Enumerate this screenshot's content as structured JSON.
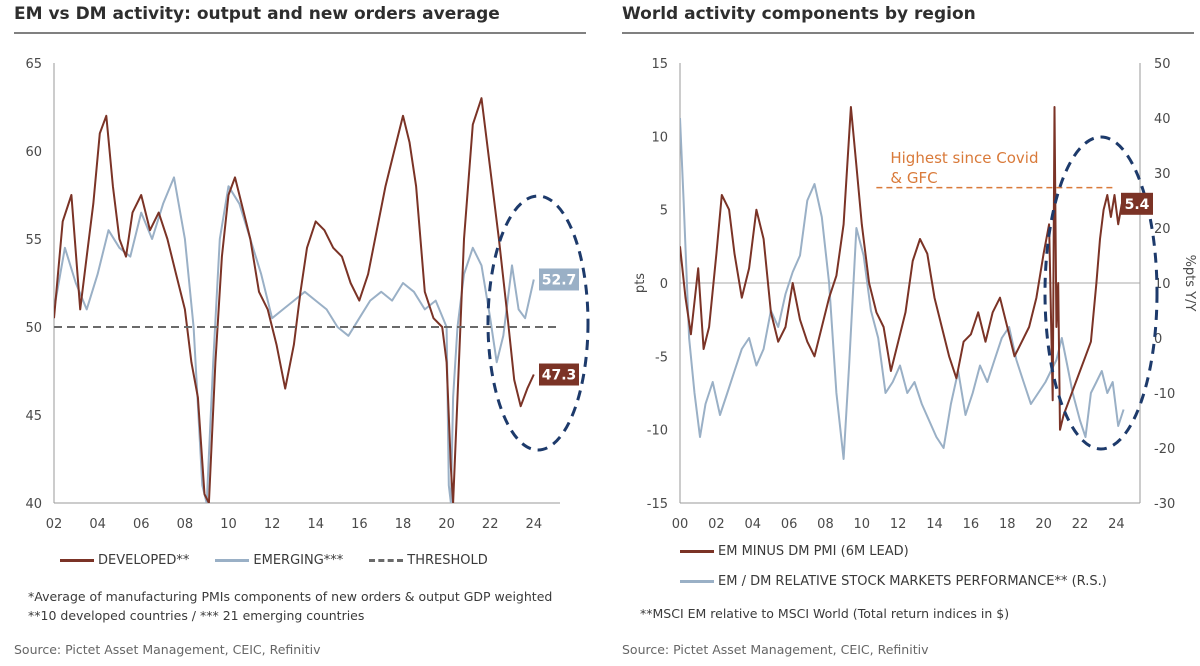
{
  "chart_data": [
    {
      "type": "line",
      "title": "EM vs DM activity: output and new orders average",
      "x_ticks": [
        "02",
        "04",
        "06",
        "08",
        "10",
        "12",
        "14",
        "16",
        "18",
        "20",
        "22",
        "24"
      ],
      "xlim": [
        2002,
        2025.2
      ],
      "ylim": [
        40,
        65
      ],
      "y_ticks": [
        40,
        45,
        50,
        55,
        60,
        65
      ],
      "series": [
        {
          "name": "DEVELOPED**",
          "color": "#7b3326",
          "x": [
            2002.0,
            2002.4,
            2002.8,
            2003.2,
            2003.5,
            2003.8,
            2004.1,
            2004.4,
            2004.7,
            2005.0,
            2005.3,
            2005.6,
            2006.0,
            2006.4,
            2006.8,
            2007.2,
            2007.6,
            2008.0,
            2008.3,
            2008.6,
            2008.9,
            2009.1,
            2009.4,
            2009.7,
            2010.0,
            2010.3,
            2010.6,
            2011.0,
            2011.4,
            2011.8,
            2012.2,
            2012.6,
            2013.0,
            2013.3,
            2013.6,
            2014.0,
            2014.4,
            2014.8,
            2015.2,
            2015.6,
            2016.0,
            2016.4,
            2016.8,
            2017.2,
            2017.6,
            2018.0,
            2018.3,
            2018.6,
            2019.0,
            2019.4,
            2019.8,
            2020.0,
            2020.2,
            2020.3,
            2020.5,
            2020.8,
            2021.2,
            2021.6,
            2022.0,
            2022.4,
            2022.8,
            2023.1,
            2023.4,
            2023.7,
            2024.0
          ],
          "values": [
            50.5,
            56.0,
            57.5,
            51.0,
            54.0,
            57.0,
            61.0,
            62.0,
            58.0,
            55.0,
            54.0,
            56.5,
            57.5,
            55.5,
            56.5,
            55.0,
            53.0,
            51.0,
            48.0,
            46.0,
            40.5,
            40.0,
            48.0,
            54.0,
            57.5,
            58.5,
            57.0,
            55.0,
            52.0,
            51.0,
            49.0,
            46.5,
            49.0,
            52.0,
            54.5,
            56.0,
            55.5,
            54.5,
            54.0,
            52.5,
            51.5,
            53.0,
            55.5,
            58.0,
            60.0,
            62.0,
            60.5,
            58.0,
            52.0,
            50.5,
            50.0,
            48.0,
            42.0,
            40.0,
            46.0,
            55.0,
            61.5,
            63.0,
            59.0,
            55.0,
            50.5,
            47.0,
            45.5,
            46.5,
            47.3
          ]
        },
        {
          "name": "EMERGING***",
          "color": "#9ab0c6",
          "x": [
            2002.0,
            2002.5,
            2003.0,
            2003.5,
            2004.0,
            2004.5,
            2005.0,
            2005.5,
            2006.0,
            2006.5,
            2007.0,
            2007.5,
            2008.0,
            2008.4,
            2008.8,
            2009.0,
            2009.3,
            2009.6,
            2010.0,
            2010.5,
            2011.0,
            2011.5,
            2012.0,
            2012.5,
            2013.0,
            2013.5,
            2014.0,
            2014.5,
            2015.0,
            2015.5,
            2016.0,
            2016.5,
            2017.0,
            2017.5,
            2018.0,
            2018.5,
            2019.0,
            2019.5,
            2020.0,
            2020.1,
            2020.2,
            2020.3,
            2020.5,
            2020.8,
            2021.2,
            2021.6,
            2022.0,
            2022.3,
            2022.6,
            2023.0,
            2023.3,
            2023.6,
            2024.0
          ],
          "values": [
            51.0,
            54.5,
            52.5,
            51.0,
            53.0,
            55.5,
            54.5,
            54.0,
            56.5,
            55.0,
            57.0,
            58.5,
            55.0,
            50.0,
            41.0,
            40.0,
            48.0,
            55.0,
            58.0,
            57.0,
            55.0,
            53.0,
            50.5,
            51.0,
            51.5,
            52.0,
            51.5,
            51.0,
            50.0,
            49.5,
            50.5,
            51.5,
            52.0,
            51.5,
            52.5,
            52.0,
            51.0,
            51.5,
            50.0,
            41.0,
            40.0,
            46.0,
            50.0,
            53.0,
            54.5,
            53.5,
            50.5,
            48.0,
            49.5,
            53.5,
            51.0,
            50.5,
            52.7
          ]
        },
        {
          "name": "THRESHOLD",
          "color": "#6a6a6a",
          "dashed": true,
          "x": [
            2002.0,
            2025.2
          ],
          "values": [
            50,
            50
          ]
        }
      ],
      "end_labels": [
        {
          "series": "EMERGING***",
          "text": "52.7",
          "value": 52.7,
          "color": "#9ab0c6"
        },
        {
          "series": "DEVELOPED**",
          "text": "47.3",
          "value": 47.3,
          "color": "#7b3326"
        }
      ],
      "annotation": "dashed ellipse highlighting 2022-2024"
    },
    {
      "type": "line",
      "title": "World activity components by region",
      "x_ticks": [
        "00",
        "02",
        "04",
        "06",
        "08",
        "10",
        "12",
        "14",
        "16",
        "18",
        "20",
        "22",
        "24"
      ],
      "xlim": [
        2000,
        2025.3
      ],
      "ylim": [
        -15,
        15
      ],
      "y_ticks": [
        -15,
        -10,
        -5,
        0,
        5,
        10,
        15
      ],
      "ylabel": "pts",
      "y2lim": [
        -30,
        50
      ],
      "y2_ticks": [
        -30,
        -20,
        -10,
        0,
        10,
        20,
        30,
        40,
        50
      ],
      "y2label": "%pts Y/Y",
      "series": [
        {
          "name": "EM MINUS DM PMI (6M LEAD)",
          "color": "#7b3326",
          "axis": "left",
          "x": [
            2000.0,
            2000.3,
            2000.6,
            2001.0,
            2001.3,
            2001.6,
            2002.0,
            2002.3,
            2002.7,
            2003.0,
            2003.4,
            2003.8,
            2004.2,
            2004.6,
            2005.0,
            2005.4,
            2005.8,
            2006.2,
            2006.6,
            2007.0,
            2007.4,
            2007.8,
            2008.2,
            2008.6,
            2009.0,
            2009.4,
            2009.7,
            2010.0,
            2010.4,
            2010.8,
            2011.2,
            2011.6,
            2012.0,
            2012.4,
            2012.8,
            2013.2,
            2013.6,
            2014.0,
            2014.4,
            2014.8,
            2015.2,
            2015.6,
            2016.0,
            2016.4,
            2016.8,
            2017.2,
            2017.6,
            2018.0,
            2018.4,
            2018.8,
            2019.2,
            2019.6,
            2020.0,
            2020.3,
            2020.5,
            2020.6,
            2020.7,
            2020.8,
            2020.9,
            2021.1,
            2021.4,
            2021.7,
            2022.0,
            2022.3,
            2022.6,
            2022.9,
            2023.1,
            2023.3,
            2023.5,
            2023.7,
            2023.9,
            2024.1,
            2024.3
          ],
          "values": [
            2.5,
            -1.0,
            -3.5,
            1.0,
            -4.5,
            -3.0,
            2.0,
            6.0,
            5.0,
            2.0,
            -1.0,
            1.0,
            5.0,
            3.0,
            -2.0,
            -4.0,
            -3.0,
            0.0,
            -2.5,
            -4.0,
            -5.0,
            -3.0,
            -1.0,
            0.5,
            4.0,
            12.0,
            8.0,
            4.0,
            0.0,
            -2.0,
            -3.0,
            -6.0,
            -4.0,
            -2.0,
            1.5,
            3.0,
            2.0,
            -1.0,
            -3.0,
            -5.0,
            -6.5,
            -4.0,
            -3.5,
            -2.0,
            -4.0,
            -2.0,
            -1.0,
            -3.0,
            -5.0,
            -4.0,
            -3.0,
            -1.0,
            2.0,
            4.0,
            -8.0,
            12.0,
            -3.0,
            0.0,
            -10.0,
            -9.0,
            -8.0,
            -7.0,
            -6.0,
            -5.0,
            -4.0,
            0.0,
            3.0,
            5.0,
            6.0,
            4.5,
            6.0,
            4.0,
            5.4
          ]
        },
        {
          "name": "EM / DM RELATIVE STOCK MARKETS PERFORMANCE** (R.S.)",
          "color": "#9ab0c6",
          "axis": "right",
          "x": [
            2000.0,
            2000.2,
            2000.5,
            2000.8,
            2001.1,
            2001.4,
            2001.8,
            2002.2,
            2002.6,
            2003.0,
            2003.4,
            2003.8,
            2004.2,
            2004.6,
            2005.0,
            2005.4,
            2005.8,
            2006.2,
            2006.6,
            2007.0,
            2007.4,
            2007.8,
            2008.2,
            2008.6,
            2009.0,
            2009.3,
            2009.7,
            2010.1,
            2010.5,
            2010.9,
            2011.3,
            2011.7,
            2012.1,
            2012.5,
            2012.9,
            2013.3,
            2013.7,
            2014.1,
            2014.5,
            2014.9,
            2015.3,
            2015.7,
            2016.1,
            2016.5,
            2016.9,
            2017.3,
            2017.7,
            2018.1,
            2018.5,
            2018.9,
            2019.3,
            2019.7,
            2020.1,
            2020.4,
            2020.7,
            2021.0,
            2021.3,
            2021.6,
            2022.0,
            2022.3,
            2022.6,
            2022.9,
            2023.2,
            2023.5,
            2023.8,
            2024.1,
            2024.4
          ],
          "values": [
            40.0,
            25.0,
            0.0,
            -10.0,
            -18.0,
            -12.0,
            -8.0,
            -14.0,
            -10.0,
            -6.0,
            -2.0,
            0.0,
            -5.0,
            -2.0,
            5.0,
            2.0,
            8.0,
            12.0,
            15.0,
            25.0,
            28.0,
            22.0,
            10.0,
            -10.0,
            -22.0,
            -5.0,
            20.0,
            15.0,
            5.0,
            0.0,
            -10.0,
            -8.0,
            -5.0,
            -10.0,
            -8.0,
            -12.0,
            -15.0,
            -18.0,
            -20.0,
            -12.0,
            -6.0,
            -14.0,
            -10.0,
            -5.0,
            -8.0,
            -4.0,
            0.0,
            2.0,
            -4.0,
            -8.0,
            -12.0,
            -10.0,
            -8.0,
            -6.0,
            -4.0,
            0.0,
            -5.0,
            -10.0,
            -15.0,
            -18.0,
            -10.0,
            -8.0,
            -6.0,
            -10.0,
            -8.0,
            -16.0,
            -13.0
          ]
        }
      ],
      "end_labels": [
        {
          "series": "EM MINUS DM PMI (6M LEAD)",
          "text": "5.4",
          "value": 5.4,
          "color": "#7b3326"
        }
      ],
      "reference_line": {
        "value": 0,
        "axis": "left"
      },
      "highlight_line": {
        "value": 6.5,
        "x_from": 2010.8,
        "x_to": 2023.9,
        "color": "#d97a3a",
        "dashed": true
      },
      "annotation_lines": [
        "Highest since Covid",
        "& GFC"
      ],
      "annotation": "dashed ellipse highlighting 2020-2024"
    }
  ],
  "left_panel": {
    "title": "EM vs DM activity: output and new orders average",
    "legend": [
      "DEVELOPED**",
      "EMERGING***",
      "THRESHOLD"
    ],
    "notes": [
      "*Average of manufacturing PMIs components of new orders & output GDP weighted",
      "**10 developed countries / *** 21 emerging countries"
    ],
    "source": "Source: Pictet Asset Management, CEIC, Refinitiv"
  },
  "right_panel": {
    "title": "World activity components by region",
    "legend": [
      "EM MINUS DM PMI (6M LEAD)",
      "EM / DM RELATIVE STOCK MARKETS PERFORMANCE** (R.S.)"
    ],
    "notes": [
      "**MSCI EM relative to MSCI World (Total return indices in $)"
    ],
    "source": "Source: Pictet Asset Management, CEIC, Refinitiv"
  },
  "colors": {
    "developed": "#7b3326",
    "emerging": "#9ab0c6",
    "threshold": "#6a6a6a",
    "highlight": "#d97a3a",
    "ellipse": "#1d3a6b"
  }
}
